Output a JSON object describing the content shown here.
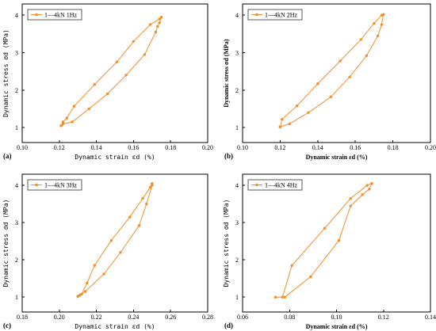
{
  "chart_data": [
    {
      "type": "line",
      "panel_label": "(a)",
      "legend": "1—4kN 1Hz",
      "xlabel": "Dynamic strain εd (%)",
      "ylabel": "Dynamic stress σd (MPa)",
      "xlim": [
        0.1,
        0.2
      ],
      "ylim": [
        0.6,
        4.3
      ],
      "xticks": [
        "0.10",
        "0.12",
        "0.14",
        "0.16",
        "0.18",
        "0.20"
      ],
      "yticks": [
        "1",
        "2",
        "3",
        "4"
      ],
      "series": [
        {
          "name": "1—4kN 1Hz",
          "x": [
            0.121,
            0.122,
            0.122,
            0.124,
            0.128,
            0.139,
            0.151,
            0.16,
            0.169,
            0.174,
            0.175,
            0.174,
            0.173,
            0.172,
            0.166,
            0.156,
            0.146,
            0.136,
            0.127,
            0.122,
            0.121,
            0.121
          ],
          "y": [
            1.05,
            1.1,
            1.15,
            1.25,
            1.57,
            2.15,
            2.75,
            3.3,
            3.75,
            3.9,
            3.95,
            3.8,
            3.7,
            3.55,
            2.95,
            2.4,
            1.9,
            1.5,
            1.15,
            1.1,
            1.05,
            1.05
          ]
        }
      ]
    },
    {
      "type": "line",
      "panel_label": "(b)",
      "legend": "1—4kN 2Hz",
      "xlabel": "Dynamic strain εd (%)",
      "ylabel": "Dynamic stress σd (MPa)",
      "xlim": [
        0.1,
        0.2
      ],
      "ylim": [
        0.6,
        4.3
      ],
      "xticks": [
        "0.10",
        "0.12",
        "0.14",
        "0.16",
        "0.18",
        "0.20"
      ],
      "yticks": [
        "1",
        "2",
        "3",
        "4"
      ],
      "series": [
        {
          "name": "1—4kN 2Hz",
          "x": [
            0.12,
            0.121,
            0.129,
            0.14,
            0.152,
            0.163,
            0.17,
            0.174,
            0.175,
            0.174,
            0.172,
            0.166,
            0.157,
            0.147,
            0.135,
            0.125,
            0.12
          ],
          "y": [
            1.02,
            1.22,
            1.58,
            2.17,
            2.78,
            3.35,
            3.78,
            4.0,
            4.02,
            3.75,
            3.45,
            2.92,
            2.35,
            1.82,
            1.4,
            1.1,
            1.02
          ]
        }
      ]
    },
    {
      "type": "line",
      "panel_label": "(c)",
      "legend": "1—4kN 3Hz",
      "xlabel": "Dynamic strain εd (%)",
      "ylabel": "Dynamic stress σd (MPa)",
      "xlim": [
        0.18,
        0.28
      ],
      "ylim": [
        0.6,
        4.3
      ],
      "xticks": [
        "0.18",
        "0.20",
        "0.22",
        "0.24",
        "0.26",
        "0.28"
      ],
      "yticks": [
        "1",
        "2",
        "3",
        "4"
      ],
      "series": [
        {
          "name": "1—4kN 3Hz",
          "x": [
            0.21,
            0.212,
            0.215,
            0.219,
            0.228,
            0.238,
            0.245,
            0.249,
            0.25,
            0.25,
            0.247,
            0.243,
            0.233,
            0.224,
            0.214,
            0.211,
            0.21
          ],
          "y": [
            1.02,
            1.08,
            1.38,
            1.85,
            2.52,
            3.15,
            3.65,
            3.95,
            4.05,
            4.0,
            3.5,
            2.92,
            2.2,
            1.62,
            1.15,
            1.05,
            1.02
          ]
        }
      ]
    },
    {
      "type": "line",
      "panel_label": "(d)",
      "legend": "1—4kN 4Hz",
      "xlabel": "Dynamic strain εd (%)",
      "ylabel": "Dynamic stress σd (MPa)",
      "xlim": [
        0.06,
        0.14
      ],
      "ylim": [
        0.6,
        4.3
      ],
      "xticks": [
        "0.06",
        "0.08",
        "0.10",
        "0.12",
        "0.14"
      ],
      "yticks": [
        "1",
        "2",
        "3",
        "4"
      ],
      "series": [
        {
          "name": "1—4kN 4Hz",
          "x": [
            0.074,
            0.077,
            0.081,
            0.095,
            0.106,
            0.113,
            0.115,
            0.114,
            0.111,
            0.106,
            0.101,
            0.089,
            0.078,
            0.074
          ],
          "y": [
            1.0,
            1.0,
            1.85,
            2.85,
            3.65,
            4.0,
            4.05,
            3.9,
            3.75,
            3.45,
            2.52,
            1.55,
            1.0,
            1.0
          ]
        }
      ]
    }
  ]
}
